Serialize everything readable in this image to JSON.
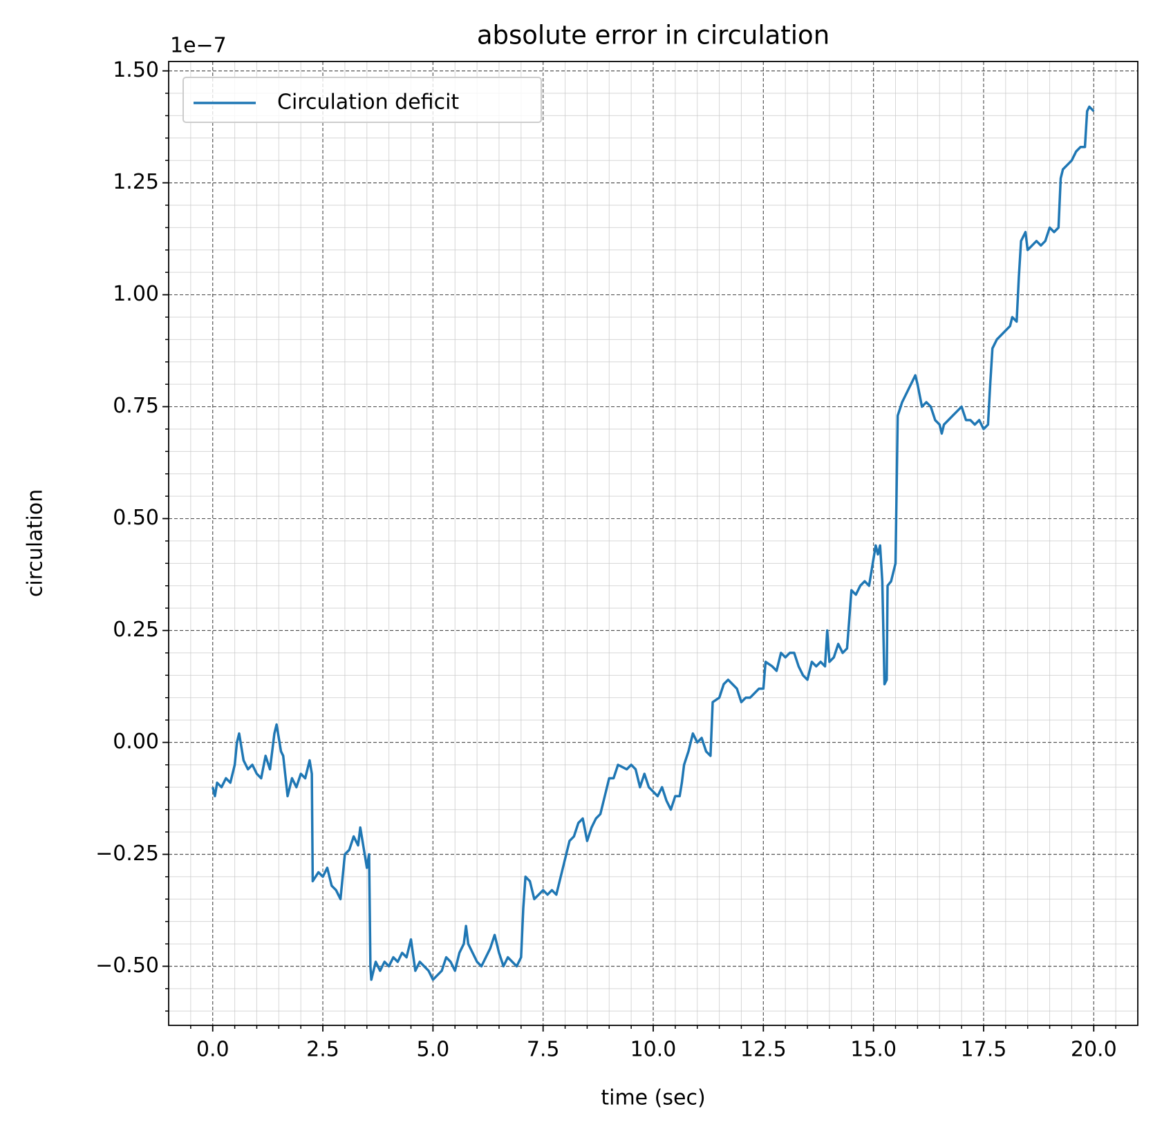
{
  "chart_data": {
    "type": "line",
    "title": "absolute error in circulation",
    "xlabel": "time (sec)",
    "ylabel": "circulation",
    "y_offset_text": "1e−7",
    "xlim": [
      -1,
      21
    ],
    "ylim": [
      -0.632,
      1.521
    ],
    "xticks": [
      {
        "value": 0,
        "label": "0.0"
      },
      2.5,
      {
        "value": 5,
        "label": "5.0"
      },
      7.5,
      {
        "value": 10,
        "label": "10.0"
      },
      12.5,
      {
        "value": 15,
        "label": "15.0"
      },
      17.5,
      {
        "value": 20,
        "label": "20.0"
      }
    ],
    "yticks": [
      {
        "value": -0.5,
        "label": "−0.50"
      },
      {
        "value": -0.25,
        "label": "−0.25"
      },
      {
        "value": 0,
        "label": "0.00"
      },
      {
        "value": 0.25,
        "label": "0.25"
      },
      {
        "value": 0.5,
        "label": "0.50"
      },
      {
        "value": 0.75,
        "label": "0.75"
      },
      {
        "value": 1,
        "label": "1.00"
      },
      {
        "value": 1.25,
        "label": "1.25"
      },
      {
        "value": 1.5,
        "label": "1.50"
      }
    ],
    "xminorticks": [
      -0.5,
      0.5,
      1,
      1.5,
      2,
      3,
      3.5,
      4,
      4.5,
      5.5,
      6,
      6.5,
      7,
      8,
      8.5,
      9,
      9.5,
      10.5,
      11,
      11.5,
      12,
      13,
      13.5,
      14,
      14.5,
      15.5,
      16,
      16.5,
      17,
      18,
      18.5,
      19,
      19.5,
      20.5
    ],
    "yminorticks": [
      -0.6,
      -0.55,
      -0.45,
      -0.4,
      -0.35,
      -0.3,
      -0.2,
      -0.15,
      -0.1,
      -0.05,
      0.05,
      0.1,
      0.15,
      0.2,
      0.3,
      0.35,
      0.4,
      0.45,
      0.55,
      0.6,
      0.65,
      0.7,
      0.8,
      0.85,
      0.9,
      0.95,
      1.05,
      1.1,
      1.15,
      1.2,
      1.3,
      1.35,
      1.4,
      1.45
    ],
    "grid": true,
    "legend": "upper left",
    "x": [
      0,
      0.05,
      0.1,
      0.2,
      0.3,
      0.4,
      0.5,
      0.55,
      0.6,
      0.7,
      0.8,
      0.9,
      1.0,
      1.1,
      1.2,
      1.3,
      1.4,
      1.45,
      1.55,
      1.6,
      1.7,
      1.8,
      1.9,
      2.0,
      2.1,
      2.2,
      2.25,
      2.27,
      2.4,
      2.5,
      2.6,
      2.7,
      2.8,
      2.9,
      3.0,
      3.1,
      3.2,
      3.3,
      3.35,
      3.45,
      3.5,
      3.55,
      3.58,
      3.6,
      3.7,
      3.8,
      3.9,
      4.0,
      4.1,
      4.2,
      4.3,
      4.4,
      4.5,
      4.6,
      4.7,
      4.8,
      4.9,
      5.0,
      5.1,
      5.2,
      5.3,
      5.4,
      5.5,
      5.6,
      5.7,
      5.75,
      5.8,
      5.9,
      6.0,
      6.1,
      6.2,
      6.3,
      6.4,
      6.5,
      6.6,
      6.7,
      6.8,
      6.9,
      7.0,
      7.05,
      7.1,
      7.2,
      7.3,
      7.5,
      7.6,
      7.7,
      7.8,
      7.9,
      8.0,
      8.1,
      8.2,
      8.3,
      8.4,
      8.5,
      8.6,
      8.7,
      8.8,
      8.9,
      9.0,
      9.1,
      9.2,
      9.4,
      9.5,
      9.6,
      9.7,
      9.8,
      9.9,
      10.0,
      10.1,
      10.2,
      10.3,
      10.4,
      10.5,
      10.6,
      10.65,
      10.7,
      10.8,
      10.9,
      11.0,
      11.1,
      11.2,
      11.3,
      11.35,
      11.5,
      11.6,
      11.7,
      11.8,
      11.9,
      12.0,
      12.1,
      12.2,
      12.3,
      12.4,
      12.5,
      12.55,
      12.7,
      12.8,
      12.9,
      13.0,
      13.1,
      13.2,
      13.3,
      13.4,
      13.5,
      13.6,
      13.7,
      13.8,
      13.9,
      13.95,
      14.0,
      14.1,
      14.2,
      14.3,
      14.4,
      14.5,
      14.6,
      14.7,
      14.8,
      14.9,
      15.0,
      15.05,
      15.1,
      15.15,
      15.2,
      15.25,
      15.3,
      15.32,
      15.4,
      15.5,
      15.55,
      15.65,
      15.7,
      15.8,
      15.9,
      15.95,
      16.0,
      16.1,
      16.2,
      16.3,
      16.4,
      16.5,
      16.55,
      16.6,
      16.7,
      16.8,
      16.9,
      17.0,
      17.1,
      17.2,
      17.3,
      17.4,
      17.5,
      17.6,
      17.65,
      17.7,
      17.8,
      17.9,
      18.0,
      18.1,
      18.15,
      18.25,
      18.3,
      18.35,
      18.45,
      18.5,
      18.6,
      18.7,
      18.8,
      18.9,
      19.0,
      19.1,
      19.2,
      19.25,
      19.3,
      19.4,
      19.5,
      19.6,
      19.7,
      19.8,
      19.85,
      19.9,
      20.0
    ],
    "series": [
      {
        "name": "Circulation deficit",
        "color": "#1f77b4",
        "values": [
          -0.1,
          -0.12,
          -0.09,
          -0.1,
          -0.08,
          -0.09,
          -0.05,
          0.0,
          0.02,
          -0.04,
          -0.06,
          -0.05,
          -0.07,
          -0.08,
          -0.03,
          -0.06,
          0.02,
          0.04,
          -0.02,
          -0.03,
          -0.12,
          -0.08,
          -0.1,
          -0.07,
          -0.08,
          -0.04,
          -0.07,
          -0.31,
          -0.29,
          -0.3,
          -0.28,
          -0.32,
          -0.33,
          -0.35,
          -0.25,
          -0.24,
          -0.21,
          -0.23,
          -0.19,
          -0.25,
          -0.28,
          -0.25,
          -0.5,
          -0.53,
          -0.49,
          -0.51,
          -0.49,
          -0.5,
          -0.48,
          -0.49,
          -0.47,
          -0.48,
          -0.44,
          -0.51,
          -0.49,
          -0.5,
          -0.51,
          -0.53,
          -0.52,
          -0.51,
          -0.48,
          -0.49,
          -0.51,
          -0.47,
          -0.45,
          -0.41,
          -0.45,
          -0.47,
          -0.49,
          -0.5,
          -0.48,
          -0.46,
          -0.43,
          -0.47,
          -0.5,
          -0.48,
          -0.49,
          -0.5,
          -0.48,
          -0.37,
          -0.3,
          -0.31,
          -0.35,
          -0.33,
          -0.34,
          -0.33,
          -0.34,
          -0.3,
          -0.26,
          -0.22,
          -0.21,
          -0.18,
          -0.17,
          -0.22,
          -0.19,
          -0.17,
          -0.16,
          -0.12,
          -0.08,
          -0.08,
          -0.05,
          -0.06,
          -0.05,
          -0.06,
          -0.1,
          -0.07,
          -0.1,
          -0.11,
          -0.12,
          -0.1,
          -0.13,
          -0.15,
          -0.12,
          -0.12,
          -0.09,
          -0.05,
          -0.02,
          0.02,
          0.0,
          0.01,
          -0.02,
          -0.03,
          0.09,
          0.1,
          0.13,
          0.14,
          0.13,
          0.12,
          0.09,
          0.1,
          0.1,
          0.11,
          0.12,
          0.12,
          0.18,
          0.17,
          0.16,
          0.2,
          0.19,
          0.2,
          0.2,
          0.17,
          0.15,
          0.14,
          0.18,
          0.17,
          0.18,
          0.17,
          0.25,
          0.18,
          0.19,
          0.22,
          0.2,
          0.21,
          0.34,
          0.33,
          0.35,
          0.36,
          0.35,
          0.41,
          0.44,
          0.42,
          0.44,
          0.36,
          0.13,
          0.14,
          0.35,
          0.36,
          0.4,
          0.73,
          0.76,
          0.77,
          0.79,
          0.81,
          0.82,
          0.8,
          0.75,
          0.76,
          0.75,
          0.72,
          0.71,
          0.69,
          0.71,
          0.72,
          0.73,
          0.74,
          0.75,
          0.72,
          0.72,
          0.71,
          0.72,
          0.7,
          0.71,
          0.8,
          0.88,
          0.9,
          0.91,
          0.92,
          0.93,
          0.95,
          0.94,
          1.04,
          1.12,
          1.14,
          1.1,
          1.11,
          1.12,
          1.11,
          1.12,
          1.15,
          1.14,
          1.15,
          1.26,
          1.28,
          1.29,
          1.3,
          1.32,
          1.33,
          1.33,
          1.41,
          1.42,
          1.41
        ]
      }
    ]
  }
}
